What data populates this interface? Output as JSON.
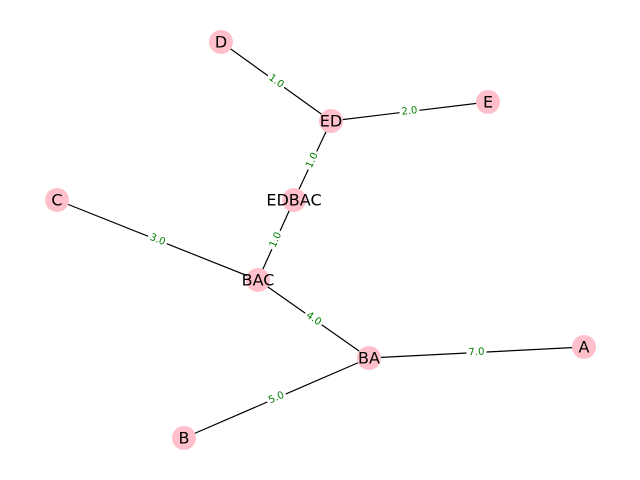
{
  "diagram": {
    "type": "graph",
    "directed": false,
    "nodes": [
      {
        "id": "D",
        "label": "D"
      },
      {
        "id": "ED",
        "label": "ED"
      },
      {
        "id": "E",
        "label": "E"
      },
      {
        "id": "EDBAC",
        "label": "EDBAC"
      },
      {
        "id": "C",
        "label": "C"
      },
      {
        "id": "BAC",
        "label": "BAC"
      },
      {
        "id": "BA",
        "label": "BA"
      },
      {
        "id": "A",
        "label": "A"
      },
      {
        "id": "B",
        "label": "B"
      }
    ],
    "edges": [
      {
        "source": "D",
        "target": "ED",
        "label": "1.0"
      },
      {
        "source": "ED",
        "target": "E",
        "label": "2.0"
      },
      {
        "source": "ED",
        "target": "EDBAC",
        "label": "1.0"
      },
      {
        "source": "EDBAC",
        "target": "BAC",
        "label": "1.0"
      },
      {
        "source": "C",
        "target": "BAC",
        "label": "3.0"
      },
      {
        "source": "BAC",
        "target": "BA",
        "label": "4.0"
      },
      {
        "source": "BA",
        "target": "A",
        "label": "7.0"
      },
      {
        "source": "BA",
        "target": "B",
        "label": "5.0"
      }
    ],
    "colors": {
      "node_fill": "#ffc0cb",
      "edge": "#000000",
      "edge_label": "#008000",
      "node_label": "#000000"
    }
  }
}
